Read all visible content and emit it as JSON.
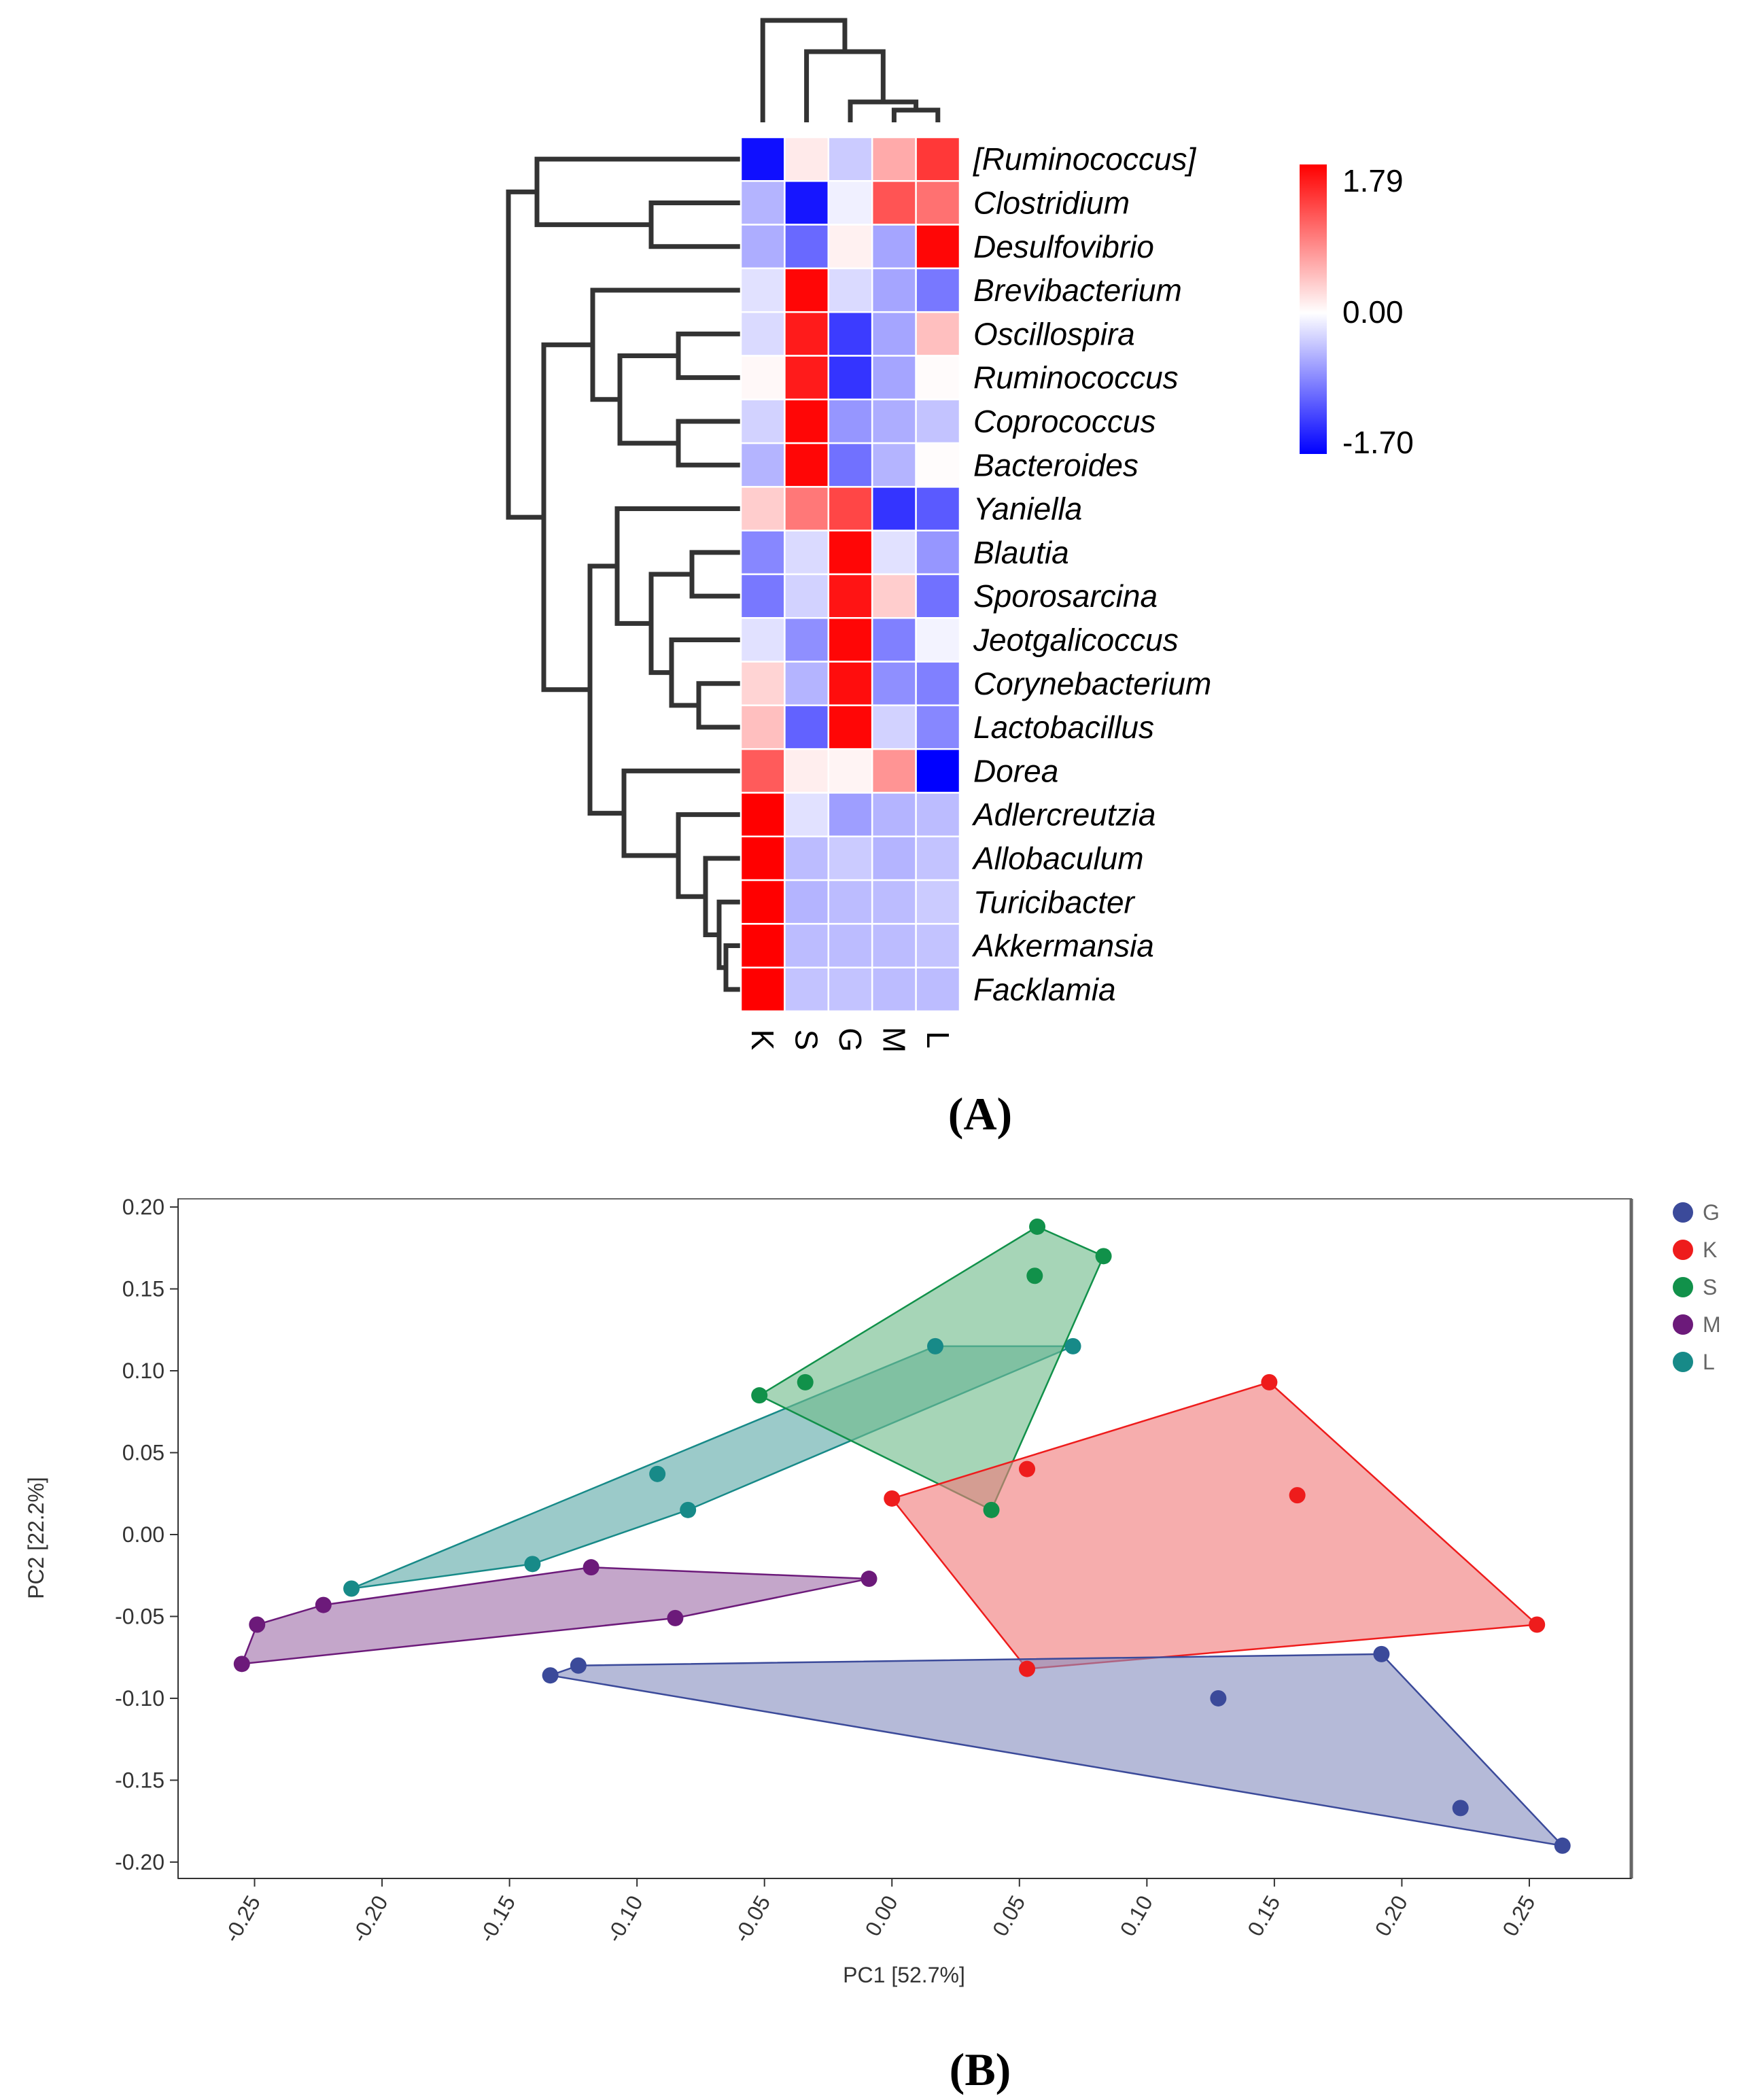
{
  "chart_data": [
    {
      "type": "heatmap",
      "panel_label": "(A)",
      "columns": [
        "K",
        "S",
        "G",
        "M",
        "L"
      ],
      "rows": [
        "[Ruminococcus]",
        "Clostridium",
        "Desulfovibrio",
        "Brevibacterium",
        "Oscillospira",
        "Ruminococcus",
        "Coprococcus",
        "Bacteroides",
        "Yaniella",
        "Blautia",
        "Sporosarcina",
        "Jeotgalicoccus",
        "Corynebacterium",
        "Lactobacillus",
        "Dorea",
        "Adlercreutzia",
        "Allobaculum",
        "Turicibacter",
        "Akkermansia",
        "Facklamia"
      ],
      "values": [
        [
          -1.6,
          0.15,
          -0.35,
          0.6,
          1.4
        ],
        [
          -0.5,
          -1.55,
          -0.1,
          1.2,
          1.0
        ],
        [
          -0.55,
          -1.0,
          0.1,
          -0.6,
          1.75
        ],
        [
          -0.2,
          1.75,
          -0.25,
          -0.6,
          -0.9
        ],
        [
          -0.25,
          1.6,
          -1.3,
          -0.6,
          0.45
        ],
        [
          0.05,
          1.6,
          -1.35,
          -0.6,
          0.03
        ],
        [
          -0.3,
          1.75,
          -0.7,
          -0.55,
          -0.4
        ],
        [
          -0.5,
          1.75,
          -0.95,
          -0.5,
          0.02
        ],
        [
          0.35,
          0.95,
          1.3,
          -1.35,
          -1.1
        ],
        [
          -0.8,
          -0.25,
          1.75,
          -0.2,
          -0.7
        ],
        [
          -0.9,
          -0.3,
          1.65,
          0.35,
          -0.95
        ],
        [
          -0.2,
          -0.75,
          1.75,
          -0.85,
          -0.08
        ],
        [
          0.3,
          -0.5,
          1.7,
          -0.75,
          -0.85
        ],
        [
          0.45,
          -1.05,
          1.75,
          -0.3,
          -0.8
        ],
        [
          1.15,
          0.12,
          0.08,
          0.75,
          -1.7
        ],
        [
          1.79,
          -0.2,
          -0.65,
          -0.5,
          -0.45
        ],
        [
          1.79,
          -0.45,
          -0.35,
          -0.5,
          -0.4
        ],
        [
          1.79,
          -0.5,
          -0.45,
          -0.45,
          -0.35
        ],
        [
          1.79,
          -0.45,
          -0.45,
          -0.45,
          -0.4
        ],
        [
          1.79,
          -0.4,
          -0.4,
          -0.45,
          -0.45
        ]
      ],
      "colorbar": {
        "max": 1.79,
        "mid": 0.0,
        "min": -1.7,
        "labels": [
          "1.79",
          "0.00",
          "-1.70"
        ],
        "colors": {
          "high": "#ff0000",
          "mid": "#ffffff",
          "low": "#0000ff"
        }
      }
    },
    {
      "type": "scatter",
      "panel_label": "(B)",
      "xlabel": "PC1 [52.7%]",
      "ylabel": "PC2 [22.2%]",
      "xlim": [
        -0.28,
        0.29
      ],
      "ylim": [
        -0.21,
        0.205
      ],
      "xticks": [
        -0.25,
        -0.2,
        -0.15,
        -0.1,
        -0.05,
        0.0,
        0.05,
        0.1,
        0.15,
        0.2,
        0.25
      ],
      "xtick_labels": [
        "-0.25",
        "-0.20",
        "-0.15",
        "-0.10",
        "-0.05",
        "0.00",
        "0.05",
        "0.10",
        "0.15",
        "0.20",
        "0.25"
      ],
      "yticks": [
        0.2,
        0.15,
        0.1,
        0.05,
        0.0,
        -0.05,
        -0.1,
        -0.15,
        -0.2
      ],
      "ytick_labels": [
        "0.20",
        "0.15",
        "0.10",
        "0.05",
        "0.00",
        "-0.05",
        "-0.10",
        "-0.15",
        "-0.20"
      ],
      "legend": [
        "G",
        "K",
        "S",
        "M",
        "L"
      ],
      "series": [
        {
          "name": "G",
          "color": "#3b4a9a",
          "hull_fill": "#8890c0",
          "points": [
            [
              -0.134,
              -0.086
            ],
            [
              -0.123,
              -0.08
            ],
            [
              0.128,
              -0.1
            ],
            [
              0.192,
              -0.073
            ],
            [
              0.223,
              -0.167
            ],
            [
              0.263,
              -0.19
            ]
          ]
        },
        {
          "name": "K",
          "color": "#ee1c1c",
          "hull_fill": "#f07a7a",
          "points": [
            [
              0.0,
              0.022
            ],
            [
              0.053,
              0.04
            ],
            [
              0.148,
              0.093
            ],
            [
              0.159,
              0.024
            ],
            [
              0.253,
              -0.055
            ],
            [
              0.053,
              -0.082
            ]
          ]
        },
        {
          "name": "S",
          "color": "#11914a",
          "hull_fill": "#70bb8a",
          "points": [
            [
              -0.052,
              0.085
            ],
            [
              -0.034,
              0.093
            ],
            [
              0.057,
              0.188
            ],
            [
              0.083,
              0.17
            ],
            [
              0.056,
              0.158
            ],
            [
              0.039,
              0.015
            ]
          ]
        },
        {
          "name": "M",
          "color": "#6c1a7a",
          "hull_fill": "#a070aa",
          "points": [
            [
              -0.255,
              -0.079
            ],
            [
              -0.249,
              -0.055
            ],
            [
              -0.223,
              -0.043
            ],
            [
              -0.118,
              -0.02
            ],
            [
              -0.085,
              -0.051
            ],
            [
              -0.009,
              -0.027
            ]
          ]
        },
        {
          "name": "L",
          "color": "#178a88",
          "hull_fill": "#5eaaa8",
          "points": [
            [
              -0.212,
              -0.033
            ],
            [
              -0.141,
              -0.018
            ],
            [
              -0.092,
              0.037
            ],
            [
              -0.08,
              0.015
            ],
            [
              0.017,
              0.115
            ],
            [
              0.071,
              0.115
            ]
          ]
        }
      ]
    }
  ]
}
